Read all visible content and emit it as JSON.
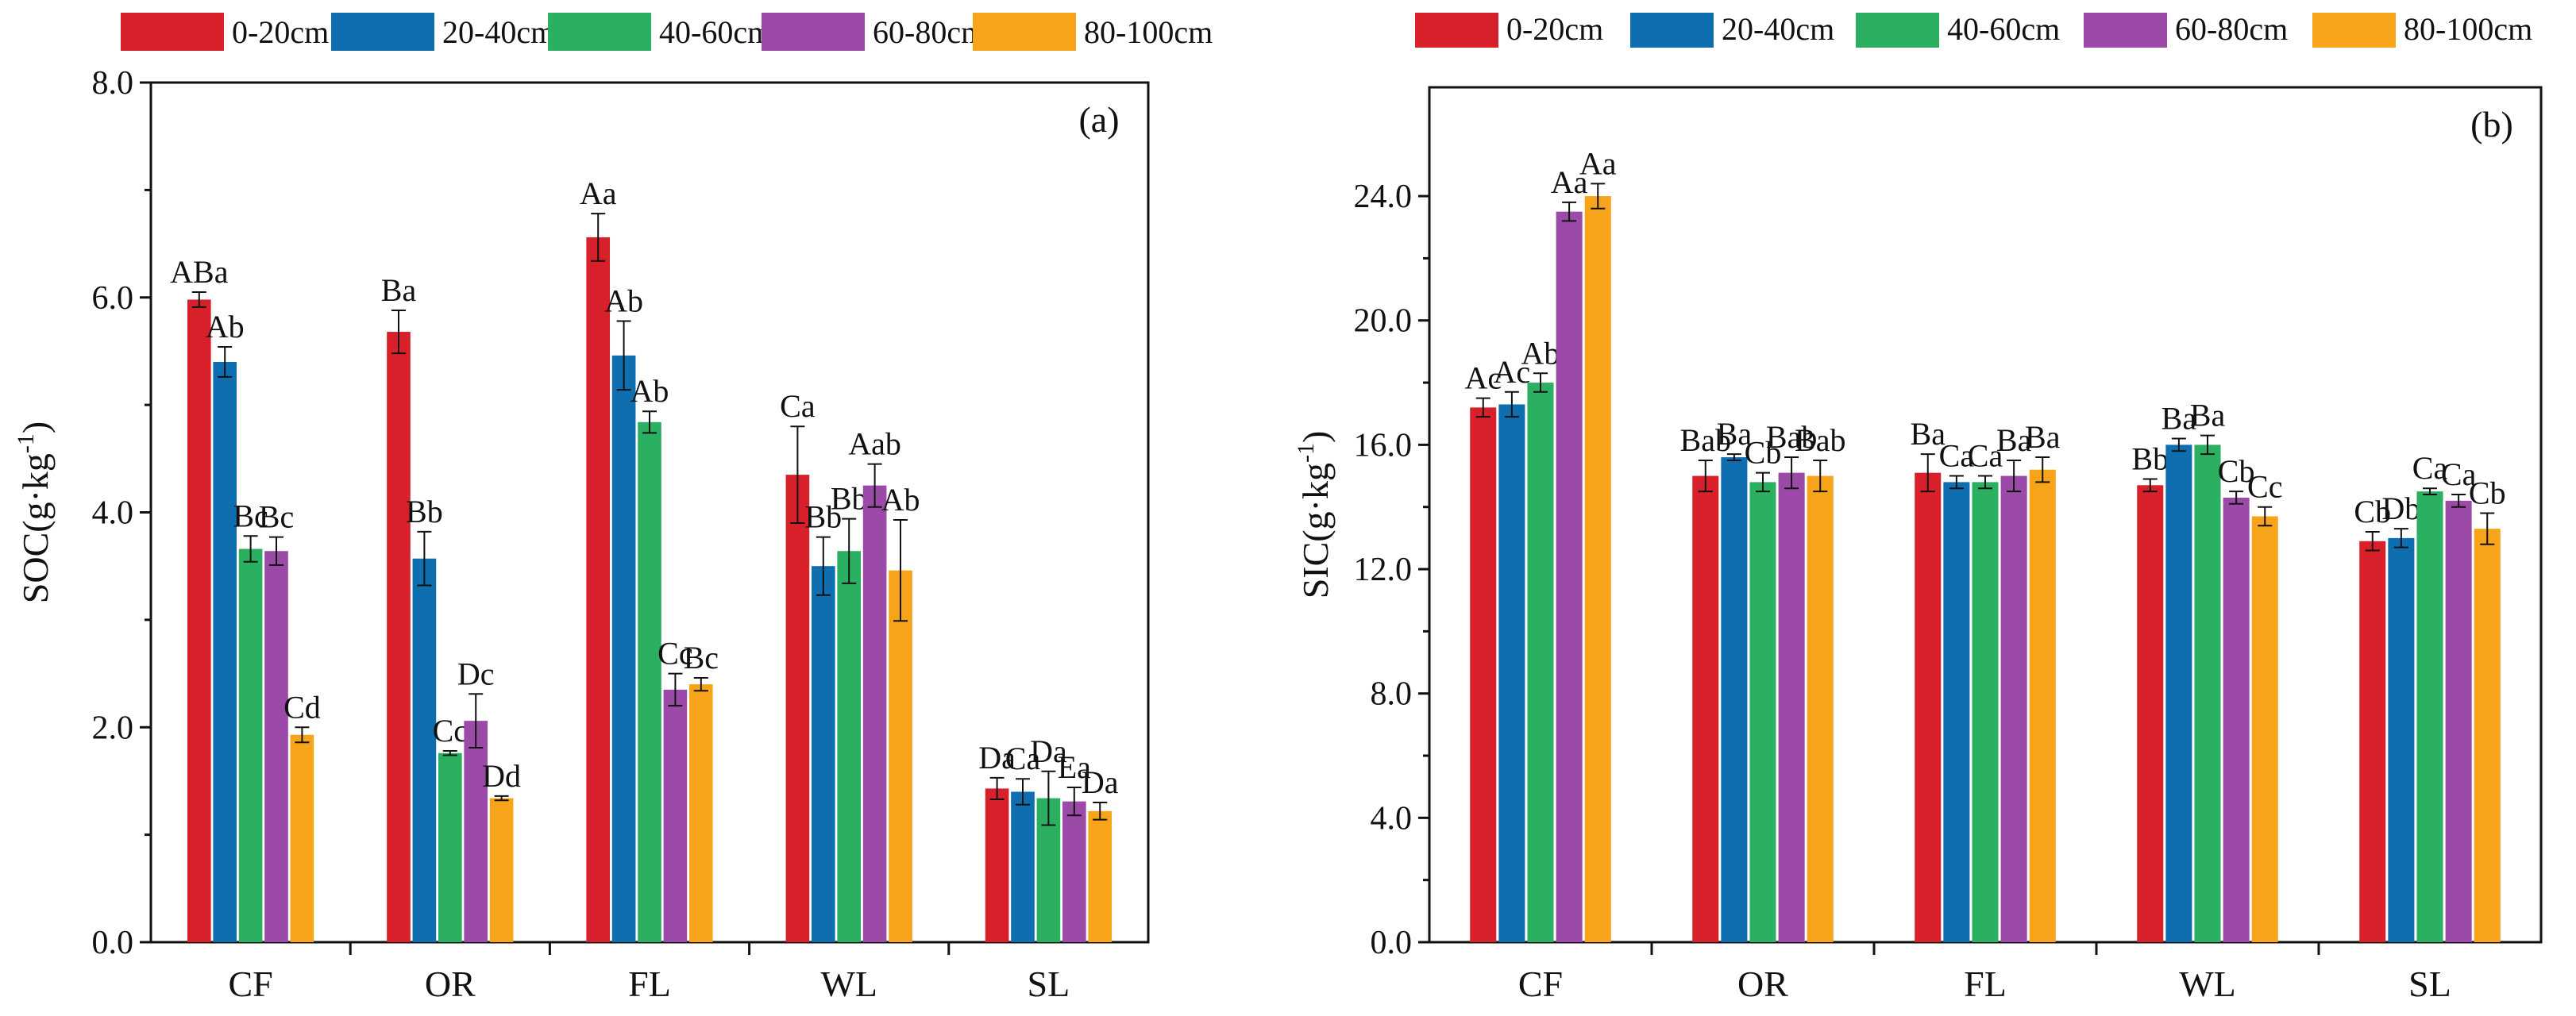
{
  "colors": {
    "0-20cm": "#d7202a",
    "20-40cm": "#0e6eb0",
    "40-60cm": "#2ab060",
    "60-80cm": "#9c4aa8",
    "80-100cm": "#f7a41b"
  },
  "chart_data": [
    {
      "type": "bar",
      "panel_label": "(a)",
      "ylabel": "SOC(g·kg",
      "ylabel_sup": "-1",
      "ylabel_end": ")",
      "xlabel": "",
      "ylim": [
        0,
        8
      ],
      "yticks": [
        "0.0",
        "2.0",
        "4.0",
        "6.0",
        "8.0"
      ],
      "categories": [
        "CF",
        "OR",
        "FL",
        "WL",
        "SL"
      ],
      "legend": [
        "0-20cm",
        "20-40cm",
        "40-60cm",
        "60-80cm",
        "80-100cm"
      ],
      "series": [
        {
          "name": "0-20cm",
          "values": [
            5.98,
            5.68,
            6.56,
            4.35,
            1.43
          ],
          "errors": [
            0.07,
            0.2,
            0.22,
            0.45,
            0.1
          ],
          "letters": [
            "ABa",
            "Ba",
            "Aa",
            "Ca",
            "Da"
          ]
        },
        {
          "name": "20-40cm",
          "values": [
            5.4,
            3.57,
            5.46,
            3.5,
            1.4
          ],
          "errors": [
            0.14,
            0.25,
            0.32,
            0.27,
            0.12
          ],
          "letters": [
            "Ab",
            "Bb",
            "Ab",
            "Bb",
            "Ca"
          ]
        },
        {
          "name": "40-60cm",
          "values": [
            3.66,
            1.76,
            4.84,
            3.64,
            1.34
          ],
          "errors": [
            0.12,
            0.02,
            0.1,
            0.3,
            0.25
          ],
          "letters": [
            "Bc",
            "Cc",
            "Ab",
            "Bb",
            "Da"
          ]
        },
        {
          "name": "60-80cm",
          "values": [
            3.64,
            2.06,
            2.35,
            4.25,
            1.31
          ],
          "errors": [
            0.13,
            0.25,
            0.15,
            0.2,
            0.13
          ],
          "letters": [
            "Bc",
            "Dc",
            "Cc",
            "Aab",
            "Ea"
          ]
        },
        {
          "name": "80-100cm",
          "values": [
            1.93,
            1.34,
            2.4,
            3.46,
            1.22
          ],
          "errors": [
            0.07,
            0.02,
            0.06,
            0.47,
            0.08
          ],
          "letters": [
            "Cd",
            "Dd",
            "Bc",
            "Ab",
            "Da"
          ]
        }
      ]
    },
    {
      "type": "bar",
      "panel_label": "(b)",
      "ylabel": "SIC(g·kg",
      "ylabel_sup": "-1",
      "ylabel_end": ")",
      "xlabel": "",
      "ylim": [
        0,
        27.5
      ],
      "yticks": [
        "0.0",
        "4.0",
        "8.0",
        "12.0",
        "16.0",
        "20.0",
        "24.0"
      ],
      "categories": [
        "CF",
        "OR",
        "FL",
        "WL",
        "SL"
      ],
      "legend": [
        "0-20cm",
        "20-40cm",
        "40-60cm",
        "60-80cm",
        "80-100cm"
      ],
      "series": [
        {
          "name": "0-20cm",
          "values": [
            17.2,
            15.0,
            15.1,
            14.7,
            12.9
          ],
          "errors": [
            0.3,
            0.5,
            0.6,
            0.2,
            0.3
          ],
          "letters": [
            "Ac",
            "Bab",
            "Ba",
            "Bb",
            "Cb"
          ]
        },
        {
          "name": "20-40cm",
          "values": [
            17.3,
            15.6,
            14.8,
            16.0,
            13.0
          ],
          "errors": [
            0.4,
            0.1,
            0.2,
            0.2,
            0.3
          ],
          "letters": [
            "Ac",
            "Ba",
            "Ca",
            "Ba",
            "Db"
          ]
        },
        {
          "name": "40-60cm",
          "values": [
            18.0,
            14.8,
            14.8,
            16.0,
            14.5
          ],
          "errors": [
            0.3,
            0.3,
            0.2,
            0.3,
            0.1
          ],
          "letters": [
            "Ab",
            "Cb",
            "Ca",
            "Ba",
            "Ca"
          ]
        },
        {
          "name": "60-80cm",
          "values": [
            23.5,
            15.1,
            15.0,
            14.3,
            14.2
          ],
          "errors": [
            0.3,
            0.5,
            0.5,
            0.2,
            0.2
          ],
          "letters": [
            "Aa",
            "Bab",
            "Ba",
            "Cb",
            "Ca"
          ]
        },
        {
          "name": "80-100cm",
          "values": [
            24.0,
            15.0,
            15.2,
            13.7,
            13.3
          ],
          "errors": [
            0.4,
            0.5,
            0.4,
            0.3,
            0.5
          ],
          "letters": [
            "Aa",
            "Bab",
            "Ba",
            "Cc",
            "Cb"
          ]
        }
      ]
    }
  ]
}
